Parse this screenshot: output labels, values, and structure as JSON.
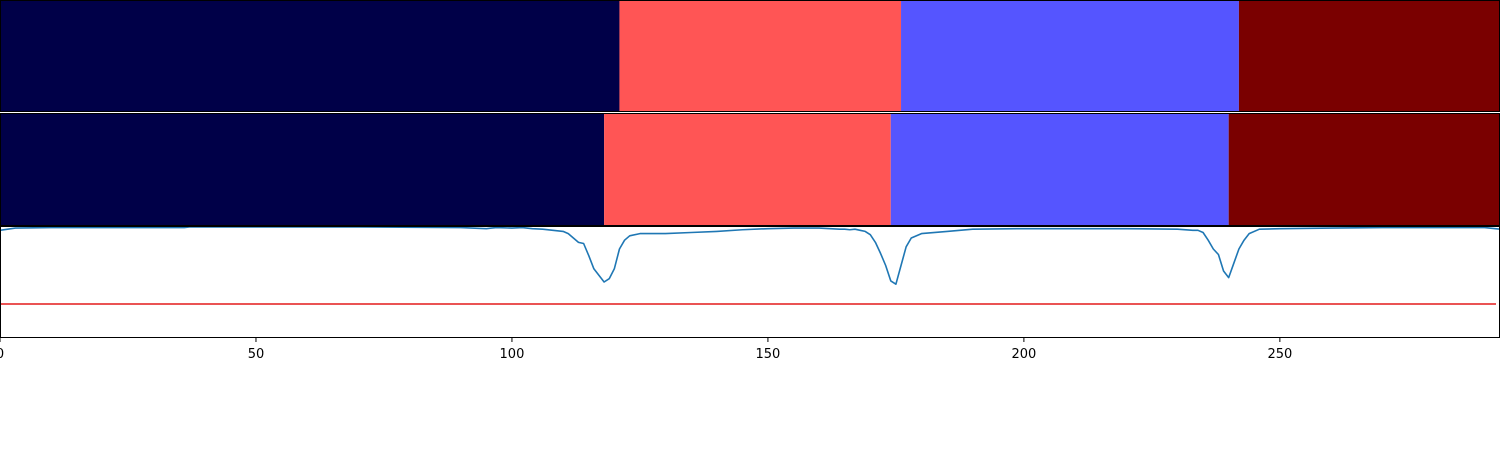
{
  "colors": {
    "segment_palette": [
      "#000048",
      "#ff5555",
      "#5555ff",
      "#7a0000"
    ],
    "signal_line": "#1f77b4",
    "threshold_line": "#e41a1c",
    "axes_frame": "#000000"
  },
  "chart_data": [
    {
      "type": "heatmap",
      "name": "segmentation-top",
      "segments": [
        {
          "class": 0,
          "start": 0,
          "end": 121
        },
        {
          "class": 1,
          "start": 121,
          "end": 176
        },
        {
          "class": 2,
          "start": 176,
          "end": 242
        },
        {
          "class": 3,
          "start": 242,
          "end": 293
        }
      ]
    },
    {
      "type": "heatmap",
      "name": "segmentation-bottom",
      "segments": [
        {
          "class": 0,
          "start": 0,
          "end": 118
        },
        {
          "class": 1,
          "start": 118,
          "end": 174
        },
        {
          "class": 2,
          "start": 174,
          "end": 240
        },
        {
          "class": 3,
          "start": 240,
          "end": 293
        }
      ]
    },
    {
      "type": "line",
      "name": "signal",
      "xlim": [
        0,
        293
      ],
      "ylim": [
        0,
        1
      ],
      "grid": false,
      "x_ticks": [
        0,
        50,
        100,
        150,
        200,
        250
      ],
      "x_tick_labels": [
        "0",
        "50",
        "100",
        "150",
        "200",
        "250"
      ],
      "series": [
        {
          "role": "signal",
          "x": [
            0,
            3,
            10,
            20,
            30,
            36,
            37,
            50,
            70,
            90,
            95,
            96,
            97,
            100,
            102,
            104,
            106,
            108,
            110,
            111,
            112,
            113,
            114,
            115,
            116,
            117,
            118,
            119,
            120,
            121,
            122,
            123,
            125,
            128,
            130,
            135,
            140,
            145,
            150,
            155,
            160,
            164,
            165,
            166,
            167,
            168,
            169,
            170,
            171,
            172,
            173,
            174,
            175,
            176,
            177,
            178,
            180,
            185,
            190,
            200,
            210,
            220,
            230,
            233,
            234,
            235,
            236,
            237,
            238,
            239,
            240,
            241,
            242,
            243,
            244,
            246,
            250,
            260,
            270,
            280,
            290,
            293
          ],
          "y": [
            0.97,
            0.99,
            0.995,
            0.995,
            0.995,
            0.995,
            1.0,
            1.0,
            1.0,
            0.995,
            0.985,
            0.99,
            0.995,
            0.99,
            0.995,
            0.985,
            0.98,
            0.97,
            0.96,
            0.94,
            0.9,
            0.86,
            0.85,
            0.74,
            0.62,
            0.56,
            0.5,
            0.53,
            0.62,
            0.8,
            0.88,
            0.92,
            0.94,
            0.94,
            0.94,
            0.95,
            0.96,
            0.975,
            0.985,
            0.99,
            0.99,
            0.98,
            0.98,
            0.975,
            0.98,
            0.97,
            0.96,
            0.93,
            0.86,
            0.76,
            0.65,
            0.51,
            0.48,
            0.65,
            0.82,
            0.9,
            0.94,
            0.96,
            0.98,
            0.985,
            0.985,
            0.985,
            0.98,
            0.97,
            0.97,
            0.95,
            0.88,
            0.8,
            0.75,
            0.6,
            0.54,
            0.67,
            0.8,
            0.88,
            0.94,
            0.98,
            0.985,
            0.99,
            0.995,
            0.995,
            0.995,
            0.98
          ]
        },
        {
          "role": "threshold",
          "x": [
            0,
            293
          ],
          "y": [
            0.3,
            0.3
          ]
        }
      ]
    }
  ]
}
